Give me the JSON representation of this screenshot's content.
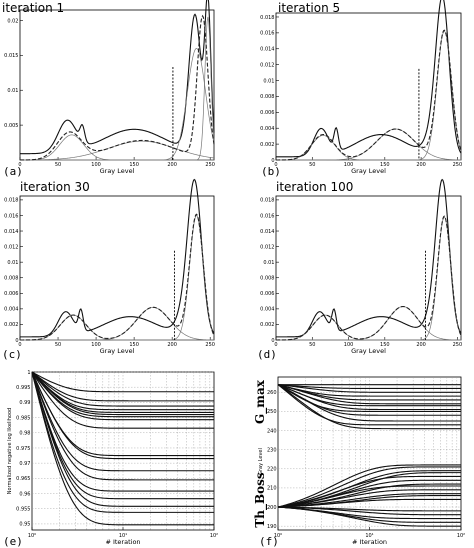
{
  "chart_data": [
    {
      "type": "line",
      "title": "iteration 1",
      "panel_label": "(a)",
      "xlabel": "Gray Level",
      "xlim": [
        0,
        255
      ],
      "ylim": [
        0,
        0.0215
      ],
      "xticks": [
        "0",
        "50",
        "100",
        "150",
        "200",
        "250"
      ],
      "yticks": [
        "0.005",
        "0.01",
        "0.015",
        "0.02"
      ],
      "threshold": 201,
      "series": [
        {
          "role": "histogram",
          "peaks": [
            [
              62,
              0.0045,
              12
            ],
            [
              82,
              0.0022,
              3
            ],
            [
              150,
              0.0035,
              40
            ],
            [
              230,
              0.0195,
              8
            ],
            [
              247,
              0.0205,
              4
            ]
          ],
          "base": 0.0009
        },
        {
          "role": "component",
          "peaks": [
            [
              68,
              0.0036,
              16
            ]
          ]
        },
        {
          "role": "component",
          "peaks": [
            [
              160,
              0.0027,
              45
            ]
          ]
        },
        {
          "role": "component",
          "peaks": [
            [
              232,
              0.016,
              12
            ]
          ]
        },
        {
          "role": "component",
          "peaks": [
            [
              247,
              0.0205,
              4
            ]
          ]
        },
        {
          "role": "mixture",
          "peaks": [
            [
              65,
              0.0038,
              16
            ],
            [
              160,
              0.0028,
              42
            ],
            [
              240,
              0.0202,
              7
            ]
          ]
        }
      ]
    },
    {
      "type": "line",
      "title": "iteration 5",
      "panel_label": "(b)",
      "xlabel": "Gray Level",
      "xlim": [
        0,
        255
      ],
      "ylim": [
        0,
        0.0185
      ],
      "xticks": [
        "0",
        "50",
        "100",
        "150",
        "200",
        "250"
      ],
      "yticks": [
        "0",
        "0.002",
        "0.004",
        "0.006",
        "0.008",
        "0.01",
        "0.012",
        "0.014",
        "0.016",
        "0.018"
      ],
      "threshold": 197,
      "series": [
        {
          "role": "histogram",
          "peaks": [
            [
              62,
              0.0034,
              10
            ],
            [
              83,
              0.0027,
              3
            ],
            [
              145,
              0.0028,
              35
            ],
            [
              230,
              0.0168,
              9
            ],
            [
              222,
              0.004,
              12
            ]
          ],
          "base": 0.0004
        },
        {
          "role": "component",
          "peaks": [
            [
              65,
              0.0031,
              16
            ]
          ]
        },
        {
          "role": "component",
          "peaks": [
            [
              165,
              0.0039,
              26
            ]
          ]
        },
        {
          "role": "component",
          "peaks": [
            [
              232,
              0.0162,
              10
            ]
          ]
        },
        {
          "role": "mixture",
          "peaks": [
            [
              65,
              0.0032,
              16
            ],
            [
              165,
              0.0039,
              26
            ],
            [
              232,
              0.0162,
              10
            ]
          ]
        }
      ]
    },
    {
      "type": "line",
      "title": "iteration 30",
      "panel_label": "(c)",
      "xlabel": "Gray Level",
      "xlim": [
        0,
        255
      ],
      "ylim": [
        0,
        0.0185
      ],
      "xticks": [
        "0",
        "50",
        "100",
        "150",
        "200",
        "250"
      ],
      "yticks": [
        "0",
        "0.002",
        "0.004",
        "0.006",
        "0.008",
        "0.01",
        "0.012",
        "0.014",
        "0.016",
        "0.018"
      ],
      "threshold": 203,
      "series": [
        {
          "role": "histogram",
          "peaks": [
            [
              60,
              0.0031,
              10
            ],
            [
              80,
              0.0027,
              3
            ],
            [
              145,
              0.0026,
              35
            ],
            [
              230,
              0.0168,
              9
            ],
            [
              222,
              0.004,
              12
            ]
          ],
          "base": 0.0004
        },
        {
          "role": "component",
          "peaks": [
            [
              70,
              0.0032,
              17
            ]
          ]
        },
        {
          "role": "component",
          "peaks": [
            [
              175,
              0.0042,
              22
            ]
          ]
        },
        {
          "role": "component",
          "peaks": [
            [
              232,
              0.016,
              9
            ]
          ]
        },
        {
          "role": "mixture",
          "peaks": [
            [
              70,
              0.0032,
              17
            ],
            [
              175,
              0.0042,
              22
            ],
            [
              232,
              0.016,
              9
            ]
          ]
        }
      ]
    },
    {
      "type": "line",
      "title": "iteration 100",
      "panel_label": "(d)",
      "xlabel": "Gray Level",
      "xlim": [
        0,
        255
      ],
      "ylim": [
        0,
        0.0185
      ],
      "xticks": [
        "0",
        "50",
        "100",
        "150",
        "200",
        "250"
      ],
      "yticks": [
        "0",
        "0.002",
        "0.004",
        "0.006",
        "0.008",
        "0.01",
        "0.012",
        "0.014",
        "0.016",
        "0.018"
      ],
      "threshold": 206,
      "series": [
        {
          "role": "histogram",
          "peaks": [
            [
              60,
              0.0031,
              10
            ],
            [
              80,
              0.0027,
              3
            ],
            [
              145,
              0.0026,
              35
            ],
            [
              230,
              0.0168,
              9
            ],
            [
              222,
              0.004,
              12
            ]
          ],
          "base": 0.0004
        },
        {
          "role": "component",
          "peaks": [
            [
              68,
              0.0032,
              17
            ]
          ]
        },
        {
          "role": "component",
          "peaks": [
            [
              175,
              0.0043,
              21
            ]
          ]
        },
        {
          "role": "component",
          "peaks": [
            [
              232,
              0.0158,
              9
            ]
          ]
        },
        {
          "role": "mixture",
          "peaks": [
            [
              68,
              0.0032,
              17
            ],
            [
              175,
              0.0043,
              21
            ],
            [
              232,
              0.0158,
              9
            ]
          ]
        }
      ]
    },
    {
      "type": "line",
      "panel_label": "(e)",
      "xlabel": "# Iteration",
      "ylabel": "Normalized negative log likelihood",
      "xscale": "log",
      "xlim": [
        1,
        100
      ],
      "ylim": [
        0.948,
        1.0
      ],
      "xticks": [
        "10⁰",
        "10¹",
        "10²"
      ],
      "yticks": [
        "0.95",
        "0.955",
        "0.96",
        "0.965",
        "0.97",
        "0.975",
        "0.98",
        "0.985",
        "0.99",
        "0.995",
        "1"
      ],
      "series_final_values": [
        0.9935,
        0.9905,
        0.9888,
        0.9876,
        0.9867,
        0.986,
        0.9853,
        0.9843,
        0.9815,
        0.9725,
        0.9715,
        0.9675,
        0.9645,
        0.9608,
        0.9583,
        0.9558,
        0.9538,
        0.9497
      ]
    },
    {
      "type": "line",
      "panel_label": "(f)",
      "xlabel": "# Iteration",
      "ylabel": "Gray Level",
      "annotations": [
        "G_max",
        "Th_Boss"
      ],
      "xscale": "log",
      "xlim": [
        1,
        100
      ],
      "ylim": [
        188,
        268
      ],
      "xticks": [
        "10⁰",
        "10¹",
        "10²"
      ],
      "yticks": [
        "190",
        "200",
        "210",
        "220",
        "230",
        "240",
        "250",
        "260"
      ],
      "upper_start": 264,
      "upper_final_values": [
        264,
        262,
        260,
        258,
        256,
        254,
        253,
        251,
        250,
        248,
        245,
        243,
        241
      ],
      "lower_start": 200,
      "lower_final_values": [
        222,
        221,
        219,
        218,
        216,
        214,
        212,
        211,
        209,
        207,
        206,
        204,
        198,
        196,
        194,
        192,
        190
      ]
    }
  ]
}
